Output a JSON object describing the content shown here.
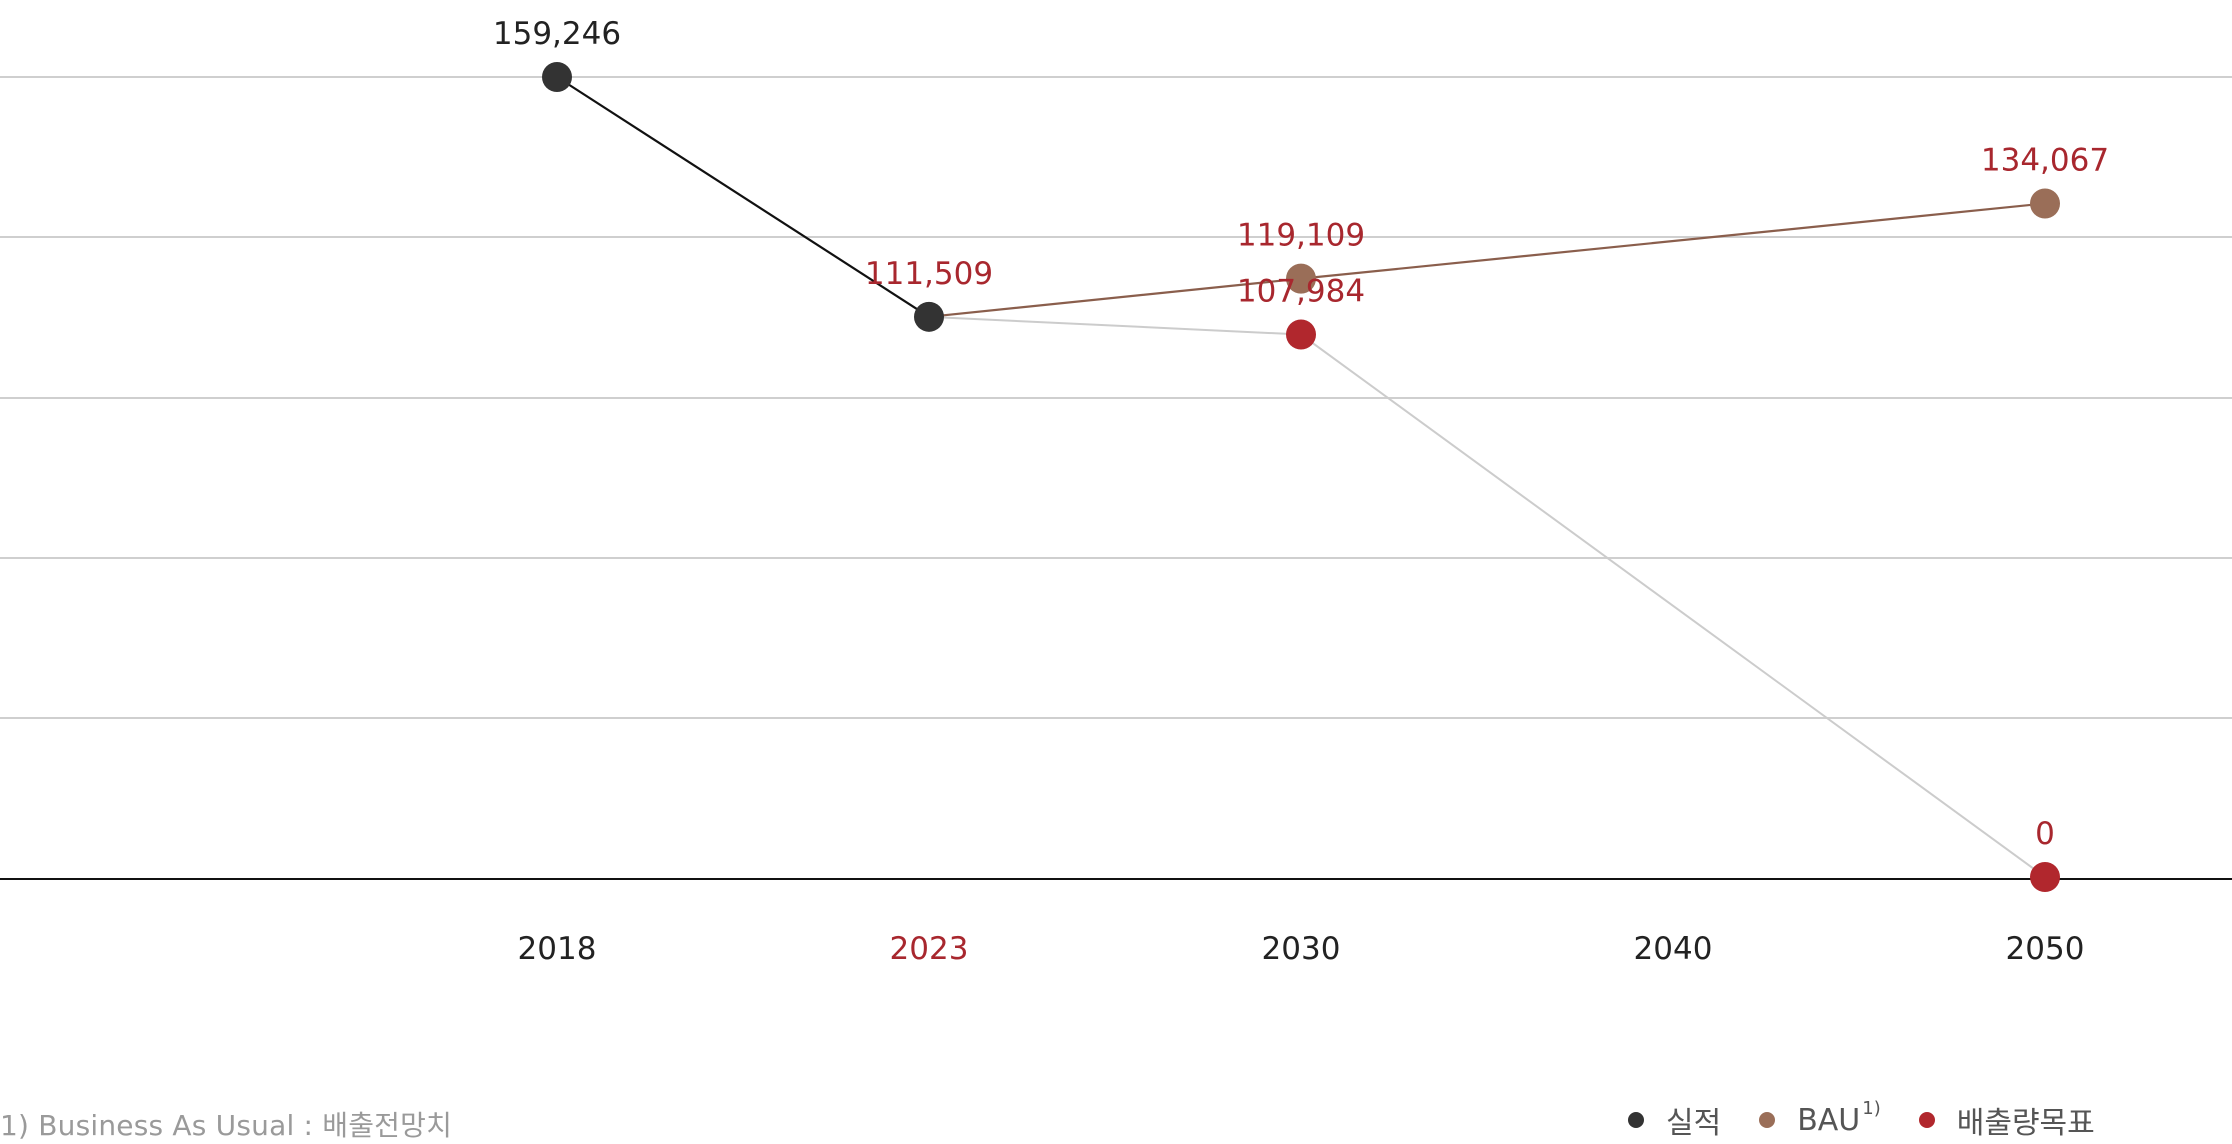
{
  "chart_data": {
    "type": "line",
    "x_categories": [
      "2018",
      "2023",
      "2030",
      "2040",
      "2050"
    ],
    "highlight_category": "2023",
    "ylim": [
      0,
      159246
    ],
    "grid": true,
    "series": [
      {
        "name": "실적",
        "color": "#333333",
        "line_color": "#111111",
        "points": [
          {
            "x": "2018",
            "y": 159246,
            "label": "159,246"
          },
          {
            "x": "2023",
            "y": 111509,
            "label": "111,509"
          }
        ]
      },
      {
        "name": "BAU",
        "name_sup": "1)",
        "color": "#9a6e58",
        "line_color": "#8a5e4c",
        "from": {
          "x": "2023",
          "y": 111509
        },
        "points": [
          {
            "x": "2030",
            "y": 119109,
            "label": "119,109"
          },
          {
            "x": "2050",
            "y": 134067,
            "label": "134,067"
          }
        ]
      },
      {
        "name": "배출량목표",
        "color": "#b1272d",
        "line_color": "#cccccc",
        "from": {
          "x": "2023",
          "y": 111509
        },
        "points": [
          {
            "x": "2030",
            "y": 107984,
            "label": "107,984"
          },
          {
            "x": "2050",
            "y": 0,
            "label": "0"
          }
        ]
      }
    ]
  },
  "legend": {
    "items": [
      {
        "label": "실적",
        "color": "#333333",
        "sup": ""
      },
      {
        "label": "BAU",
        "color": "#9a6e58",
        "sup": "1)"
      },
      {
        "label": "배출량목표",
        "color": "#b1272d",
        "sup": ""
      }
    ]
  },
  "footnote": "1) Business As Usual : 배출전망치",
  "colors": {
    "label_dark": "#222222",
    "label_red": "#a8272e",
    "grid": "#cfcfcf",
    "axis": "#111111"
  }
}
